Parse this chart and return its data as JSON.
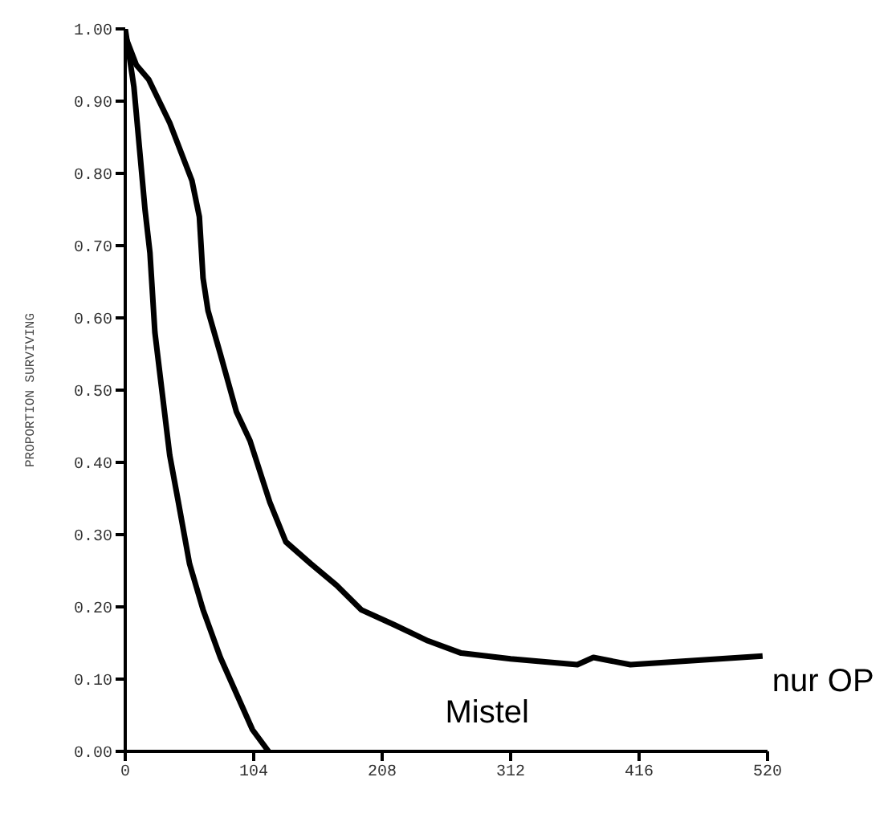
{
  "chart_data": {
    "type": "line",
    "ylabel": "PROPORTION SURVIVING",
    "xlim": [
      0,
      520
    ],
    "xticks": [
      0,
      104,
      208,
      312,
      416,
      520
    ],
    "ylim": [
      0,
      1
    ],
    "yticks": [
      {
        "value": 0,
        "label": "0.00"
      },
      {
        "value": 0.1,
        "label": "0.10"
      },
      {
        "value": 0.2,
        "label": "0.20"
      },
      {
        "value": 0.3,
        "label": "0.30"
      },
      {
        "value": 0.4,
        "label": "0.40"
      },
      {
        "value": 0.5,
        "label": "0.50"
      },
      {
        "value": 0.6,
        "label": "0.60"
      },
      {
        "value": 0.7,
        "label": "0.70"
      },
      {
        "value": 0.8,
        "label": "0.80"
      },
      {
        "value": 0.9,
        "label": "0.90"
      },
      {
        "value": 1,
        "label": "1.00"
      }
    ],
    "grid": false,
    "legend": false,
    "marker": "none",
    "line_style": "solid",
    "series": [
      {
        "name": "nur OP",
        "color": "#000000",
        "x": [
          0,
          9,
          19,
          36,
          54,
          60,
          63,
          67,
          77,
          90,
          101,
          117,
          130,
          150,
          171,
          191,
          218,
          245,
          272,
          312,
          366,
          379,
          409,
          516
        ],
        "values": [
          0.99,
          0.95,
          0.93,
          0.87,
          0.79,
          0.74,
          0.655,
          0.61,
          0.55,
          0.47,
          0.43,
          0.345,
          0.29,
          0.26,
          0.23,
          0.196,
          0.175,
          0.153,
          0.136,
          0.128,
          0.12,
          0.13,
          0.12,
          0.132
        ]
      },
      {
        "name": "Mistel",
        "color": "#000000",
        "x": [
          0,
          7,
          16,
          20,
          24,
          30,
          36,
          43,
          52,
          63,
          77,
          90,
          103,
          116
        ],
        "values": [
          1,
          0.92,
          0.75,
          0.69,
          0.58,
          0.495,
          0.41,
          0.345,
          0.26,
          0.196,
          0.13,
          0.08,
          0.03,
          0
        ]
      }
    ]
  }
}
